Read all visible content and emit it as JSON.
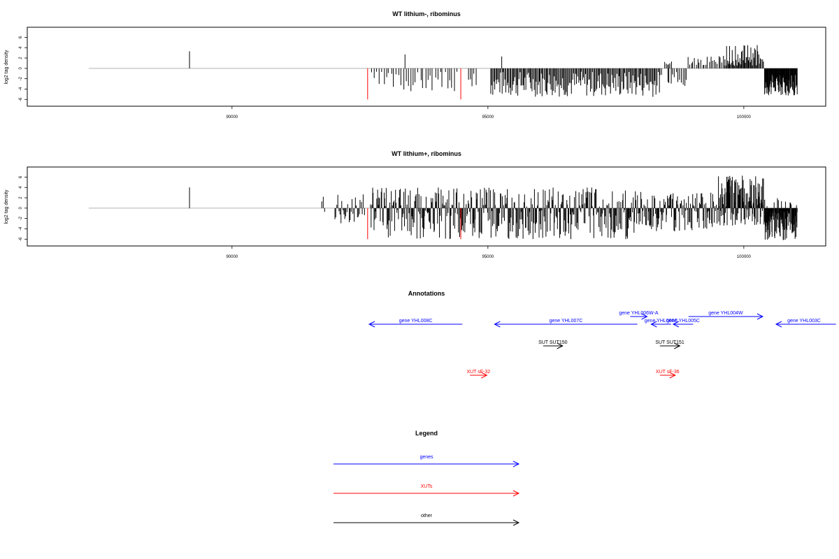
{
  "colors": {
    "gene": "#0000ff",
    "xut": "#ff0000",
    "other": "#000000",
    "baseline": "#b0b0b0",
    "bar": "#000000"
  },
  "chart_data": [
    {
      "type": "bar",
      "title": "WT lithium-, ribominus",
      "ylabel": "log2 tag density",
      "xlim": [
        86000,
        101600
      ],
      "ylim": [
        -6.5,
        7
      ],
      "xticks": [
        90000,
        95000,
        100000
      ],
      "yticks": [
        -6,
        -4,
        -2,
        0,
        2,
        4,
        6
      ],
      "grid": false,
      "highlight_bars": [
        {
          "x": 92650,
          "y": -6,
          "color": "#ff0000"
        },
        {
          "x": 94470,
          "y": -6,
          "color": "#ff0000"
        }
      ],
      "isolated_bars": [
        {
          "x": 89170,
          "y": 3.3
        },
        {
          "x": 93380,
          "y": 2.7
        },
        {
          "x": 95270,
          "y": 2.3
        }
      ],
      "segments": [
        {
          "x0": 92720,
          "x1": 94430,
          "n": 36,
          "min": -4.5,
          "max": -0.5,
          "seed": 3
        },
        {
          "x0": 94600,
          "x1": 94800,
          "n": 5,
          "min": -3.5,
          "max": -1,
          "seed": 5
        },
        {
          "x0": 95050,
          "x1": 98400,
          "n": 170,
          "min": -5.5,
          "max": -0.5,
          "seed": 7
        },
        {
          "x0": 98450,
          "x1": 98600,
          "n": 6,
          "min": 0.6,
          "max": 1.5,
          "seed": 9
        },
        {
          "x0": 98500,
          "x1": 98900,
          "n": 12,
          "min": -3.5,
          "max": -0.6,
          "seed": 11
        },
        {
          "x0": 98900,
          "x1": 99600,
          "n": 22,
          "min": 0.5,
          "max": 2.4,
          "seed": 13
        },
        {
          "x0": 99600,
          "x1": 100300,
          "n": 46,
          "min": 0.5,
          "max": 4.5,
          "seed": 15
        },
        {
          "x0": 100300,
          "x1": 100400,
          "n": 5,
          "min": 0.5,
          "max": 2,
          "seed": 16
        },
        {
          "x0": 100400,
          "x1": 101050,
          "n": 70,
          "min": -5.3,
          "max": -1.2,
          "seed": 17
        }
      ]
    },
    {
      "type": "bar",
      "title": "WT lithium+, ribominus",
      "ylabel": "log2 tag density",
      "xlim": [
        86000,
        101600
      ],
      "ylim": [
        -6.5,
        7
      ],
      "xticks": [
        90000,
        95000,
        100000
      ],
      "yticks": [
        -6,
        -4,
        -2,
        0,
        2,
        4,
        6
      ],
      "grid": false,
      "highlight_bars": [
        {
          "x": 92650,
          "y": -6,
          "color": "#ff0000"
        },
        {
          "x": 94470,
          "y": -6,
          "color": "#ff0000"
        }
      ],
      "isolated_bars": [
        {
          "x": 89170,
          "y": 4
        }
      ],
      "segments": [
        {
          "x0": 91750,
          "x1": 91820,
          "n": 3,
          "min": -3,
          "max": 4.2,
          "seed": 21,
          "mixed": true
        },
        {
          "x0": 92000,
          "x1": 92600,
          "n": 30,
          "min": -3,
          "max": 3,
          "seed": 23,
          "mixed": true
        },
        {
          "x0": 92700,
          "x1": 98000,
          "n": 380,
          "min": -6,
          "max": 4,
          "seed": 25,
          "mixed": true
        },
        {
          "x0": 98000,
          "x1": 99500,
          "n": 110,
          "min": -4.5,
          "max": 3,
          "seed": 27,
          "mixed": true
        },
        {
          "x0": 99500,
          "x1": 100400,
          "n": 110,
          "min": -3.5,
          "max": 6.3,
          "seed": 29,
          "mixed": true,
          "posbias": 0.65
        },
        {
          "x0": 100400,
          "x1": 101050,
          "n": 90,
          "min": -6.2,
          "max": 2,
          "seed": 31,
          "mixed": true,
          "posbias": 0.15
        }
      ]
    }
  ],
  "annotations": {
    "title": "Annotations",
    "items": [
      {
        "label": "gene YHL008C",
        "x0": 94500,
        "x1": 92680,
        "row": 1,
        "kind": "gene"
      },
      {
        "label": "gene YHL007C",
        "x0": 97920,
        "x1": 95130,
        "row": 1,
        "kind": "gene"
      },
      {
        "label": "gene YHL006W-A",
        "x0": 97780,
        "x1": 98110,
        "row": 0,
        "kind": "gene"
      },
      {
        "label": "gene YHL006C",
        "x0": 98580,
        "x1": 98190,
        "row": 1,
        "kind": "gene"
      },
      {
        "label": "gene YHL005C",
        "x0": 99010,
        "x1": 98620,
        "row": 1,
        "kind": "gene"
      },
      {
        "label": "gene YHL004W",
        "x0": 98920,
        "x1": 100370,
        "row": 0,
        "kind": "gene"
      },
      {
        "label": "gene YHL003C",
        "x0": 101800,
        "x1": 100630,
        "row": 1,
        "kind": "gene"
      },
      {
        "label": "SUT SUT150",
        "x0": 96080,
        "x1": 96460,
        "row": 2,
        "kind": "other"
      },
      {
        "label": "SUT SUT151",
        "x0": 98360,
        "x1": 98750,
        "row": 2,
        "kind": "other"
      },
      {
        "label": "XUT sF-32",
        "x0": 94650,
        "x1": 94980,
        "row": 3,
        "kind": "xut"
      },
      {
        "label": "XUT sF-36",
        "x0": 98360,
        "x1": 98660,
        "row": 3,
        "kind": "xut"
      }
    ]
  },
  "legend": {
    "title": "Legend",
    "items": [
      {
        "label": "genes",
        "kind": "gene"
      },
      {
        "label": "XUTs",
        "kind": "xut"
      },
      {
        "label": "other",
        "kind": "other"
      }
    ]
  }
}
